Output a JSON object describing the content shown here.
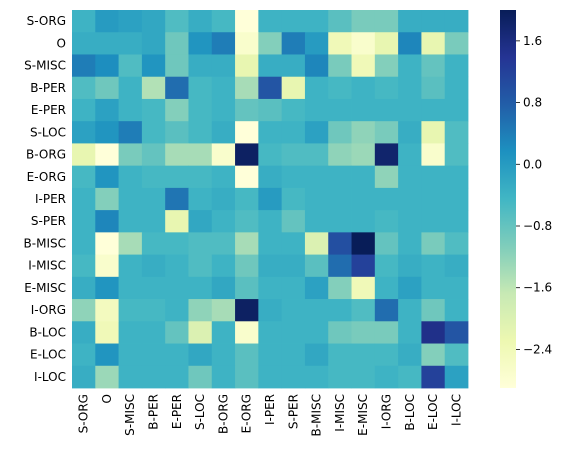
{
  "chart_data": {
    "type": "heatmap",
    "title": "",
    "xlabel": "",
    "ylabel": "",
    "row_labels": [
      "S-ORG",
      "O",
      "S-MISC",
      "B-PER",
      "E-PER",
      "S-LOC",
      "B-ORG",
      "E-ORG",
      "I-PER",
      "S-PER",
      "B-MISC",
      "I-MISC",
      "E-MISC",
      "I-ORG",
      "B-LOC",
      "E-LOC",
      "I-LOC"
    ],
    "col_labels": [
      "S-ORG",
      "O",
      "S-MISC",
      "B-PER",
      "E-PER",
      "S-LOC",
      "B-ORG",
      "E-ORG",
      "I-PER",
      "S-PER",
      "B-MISC",
      "I-MISC",
      "E-MISC",
      "I-ORG",
      "B-LOC",
      "E-LOC",
      "I-LOC"
    ],
    "values": [
      [
        -0.4,
        0.0,
        -0.1,
        -0.2,
        -0.6,
        -0.3,
        -0.5,
        -2.9,
        -0.4,
        -0.4,
        -0.4,
        -0.7,
        -1.0,
        -1.0,
        -0.3,
        -0.3,
        -0.3
      ],
      [
        -0.3,
        -0.3,
        -0.3,
        -0.2,
        -0.9,
        0.1,
        0.4,
        -2.7,
        -1.1,
        0.4,
        0.0,
        -2.4,
        -2.7,
        -2.2,
        0.3,
        -2.2,
        -1.0
      ],
      [
        0.4,
        0.2,
        -0.6,
        0.1,
        -0.9,
        -0.3,
        -0.3,
        -2.2,
        -0.3,
        -0.3,
        0.3,
        -1.0,
        -2.4,
        -1.1,
        -0.4,
        -0.8,
        -0.4
      ],
      [
        -0.6,
        -0.9,
        -0.4,
        -1.5,
        0.6,
        -0.5,
        -0.4,
        -1.4,
        0.9,
        -2.2,
        -0.4,
        -0.5,
        -0.4,
        -0.5,
        -0.4,
        -0.7,
        -0.4
      ],
      [
        -0.4,
        -0.1,
        -0.4,
        -0.5,
        -1.1,
        -0.5,
        -0.4,
        -0.8,
        -0.7,
        -0.5,
        -0.4,
        -0.4,
        -0.4,
        -0.4,
        -0.4,
        -0.4,
        -0.4
      ],
      [
        -0.1,
        0.1,
        0.4,
        -0.5,
        -0.7,
        -0.5,
        -0.3,
        -3.0,
        -0.4,
        -0.4,
        -0.1,
        -0.9,
        -1.2,
        -1.0,
        -0.3,
        -2.2,
        -0.6
      ],
      [
        -2.2,
        -3.0,
        -1.0,
        -0.8,
        -1.4,
        -1.4,
        -2.7,
        1.9,
        -0.5,
        -0.6,
        -0.6,
        -1.2,
        -1.3,
        1.8,
        -0.4,
        -2.7,
        -0.6
      ],
      [
        -0.5,
        0.1,
        -0.4,
        -0.5,
        -0.5,
        -0.5,
        -0.4,
        -2.9,
        -0.3,
        -0.4,
        -0.4,
        -0.4,
        -0.4,
        -1.2,
        -0.4,
        -0.4,
        -0.4
      ],
      [
        -0.4,
        -1.1,
        -0.4,
        -0.4,
        0.5,
        -0.4,
        -0.3,
        -0.5,
        0.0,
        -0.5,
        -0.4,
        -0.4,
        -0.4,
        -0.4,
        -0.4,
        -0.4,
        -0.4
      ],
      [
        -0.4,
        0.3,
        -0.4,
        -0.4,
        -2.2,
        -0.2,
        -0.4,
        -0.6,
        -0.4,
        -0.8,
        -0.4,
        -0.4,
        -0.4,
        -0.5,
        -0.4,
        -0.4,
        -0.4
      ],
      [
        -0.4,
        -3.0,
        -1.4,
        -0.5,
        -0.5,
        -0.6,
        -0.6,
        -1.4,
        -0.4,
        -0.4,
        -2.0,
        1.0,
        2.0,
        -0.8,
        -0.4,
        -1.0,
        -0.6
      ],
      [
        -0.5,
        -2.7,
        -0.4,
        -0.3,
        -0.4,
        -0.6,
        -0.4,
        -0.9,
        -0.3,
        -0.3,
        -0.7,
        0.6,
        1.2,
        -0.5,
        -0.3,
        -0.4,
        -0.3
      ],
      [
        -0.3,
        0.1,
        -0.4,
        -0.4,
        -0.4,
        -0.4,
        -0.2,
        -0.7,
        -0.4,
        -0.4,
        -0.1,
        -1.1,
        -2.4,
        -0.4,
        -0.1,
        -0.4,
        -0.4
      ],
      [
        -1.2,
        -2.5,
        -0.5,
        -0.5,
        -0.4,
        -1.2,
        -1.4,
        1.9,
        -0.3,
        -0.4,
        -0.4,
        -0.4,
        -0.6,
        0.6,
        -0.4,
        -0.9,
        -0.4
      ],
      [
        -0.3,
        -2.4,
        -0.4,
        -0.4,
        -0.8,
        -2.0,
        -0.4,
        -2.7,
        -0.4,
        -0.4,
        -0.4,
        -0.9,
        -1.0,
        -1.0,
        -0.4,
        1.5,
        0.9
      ],
      [
        -0.4,
        0.1,
        -0.4,
        -0.4,
        -0.4,
        -0.2,
        -0.4,
        -0.7,
        -0.4,
        -0.4,
        -0.2,
        -0.5,
        -0.5,
        -0.5,
        -0.3,
        -1.1,
        -0.6
      ],
      [
        -0.3,
        -1.3,
        -0.4,
        -0.4,
        -0.4,
        -0.9,
        -0.4,
        -0.7,
        -0.4,
        -0.4,
        -0.4,
        -0.5,
        -0.5,
        -0.4,
        -0.5,
        1.2,
        -0.1
      ]
    ],
    "vmin": -2.9,
    "vmax": 2.0,
    "colormap": "YlGnBu",
    "colorbar_ticks": [
      1.6,
      0.8,
      0.0,
      -0.8,
      -1.6,
      -2.4
    ],
    "colorbar_tick_labels": [
      "1.6",
      "0.8",
      "0.0",
      "−0.8",
      "−1.6",
      "−2.4"
    ],
    "grid": false,
    "legend": "colorbar-right"
  }
}
